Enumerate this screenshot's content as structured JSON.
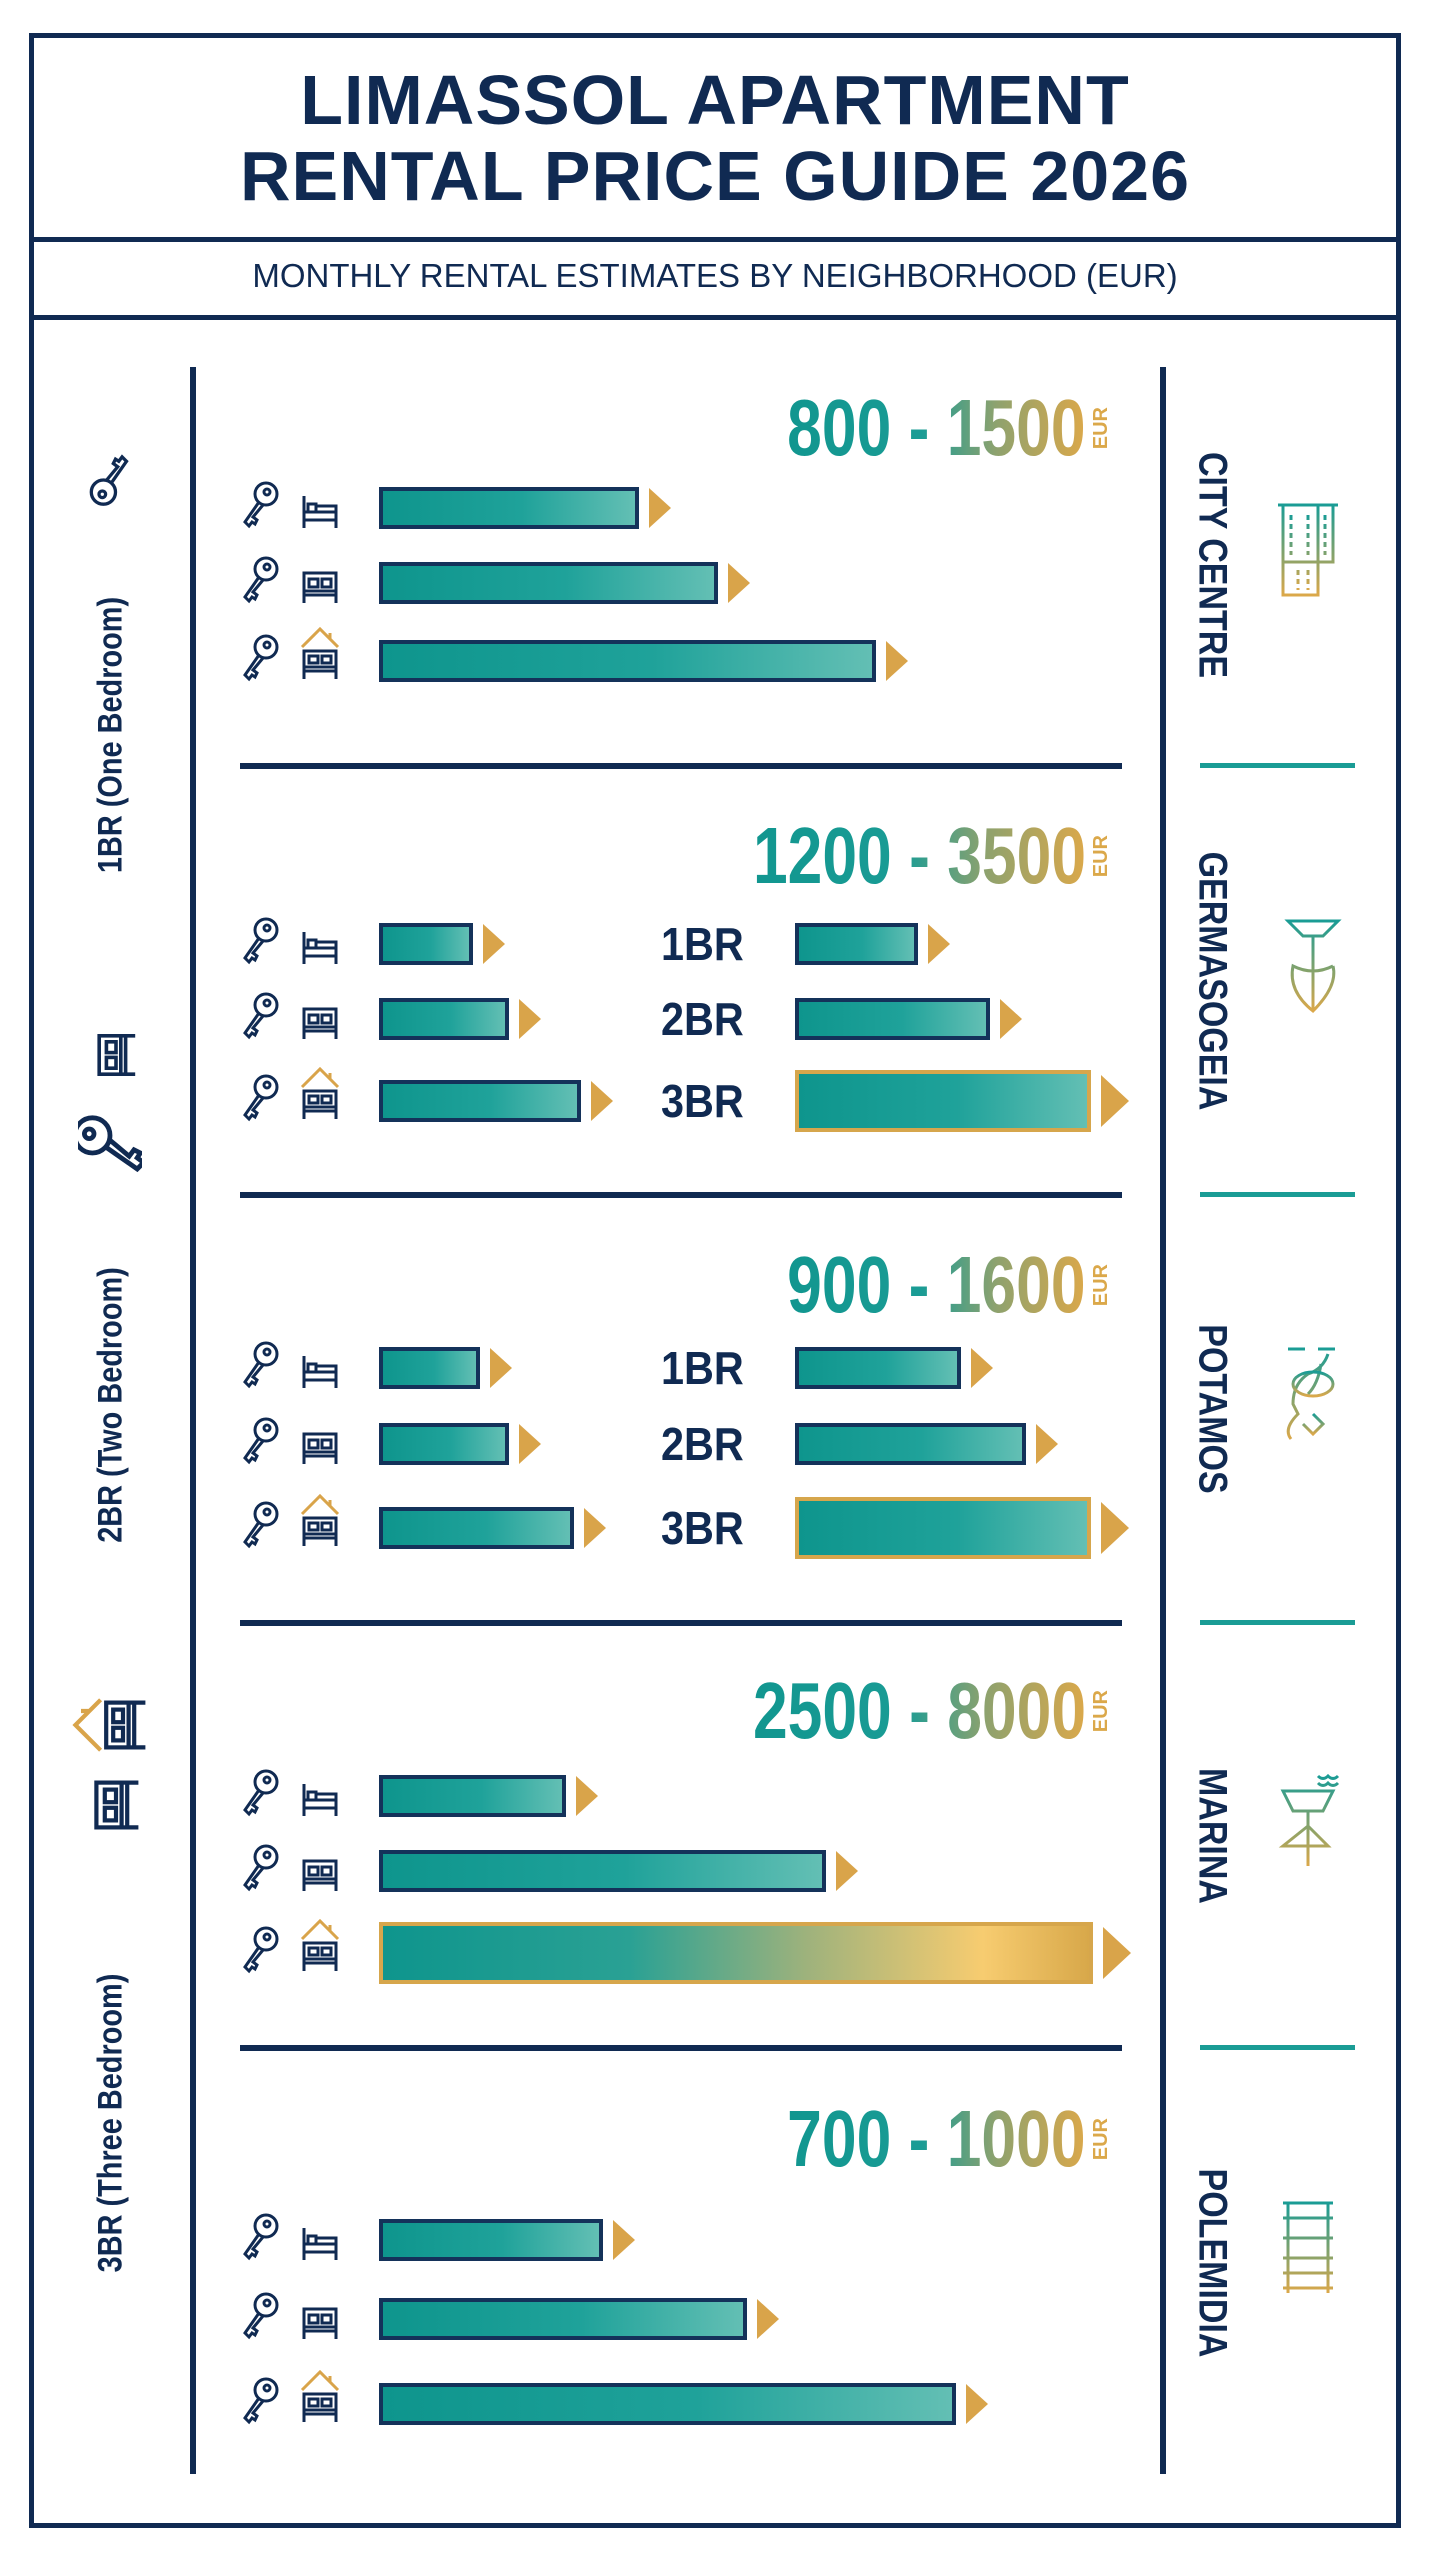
{
  "header": {
    "title_line1": "LIMASSOL APARTMENT",
    "title_line2": "RENTAL PRICE GUIDE 2026",
    "subtitle": "MONTHLY RENTAL ESTIMATES BY NEIGHBORHOOD (EUR)"
  },
  "legend": [
    {
      "label": "1BR (One Bedroom)",
      "icon": "key-icon"
    },
    {
      "label": "2BR (Two Bedroom)",
      "icon": "double-bed-key-icon"
    },
    {
      "label": "3BR (Three Bedroom)",
      "icon": "house-bed-key-icon"
    }
  ],
  "colors": {
    "navy": "#102a52",
    "teal": "#1a9c95",
    "gold": "#d9a44a"
  },
  "chart_data": {
    "type": "bar",
    "title": "LIMASSOL APARTMENT RENTAL PRICE GUIDE 2026",
    "subtitle": "MONTHLY RENTAL ESTIMATES BY NEIGHBORHOOD (EUR)",
    "unit": "EUR",
    "categories": [
      "1BR",
      "2BR",
      "3BR"
    ],
    "neighborhoods": [
      {
        "name": "CITY CENTRE",
        "icon": "building-icon",
        "range": "800 - 1500",
        "unit": "EUR",
        "bars": [
          0.36,
          0.47,
          0.69
        ]
      },
      {
        "name": "GERMASOGEIA",
        "icon": "beach-umbrella-icon",
        "range": "1200 - 3500",
        "unit": "EUR",
        "bars": [
          0.13,
          0.18,
          0.28
        ],
        "labeled_bars": [
          {
            "label": "1BR",
            "value": 0.17
          },
          {
            "label": "2BR",
            "value": 0.27
          },
          {
            "label": "3BR",
            "value": 0.41,
            "highlight": true
          }
        ]
      },
      {
        "name": "POTAMOS",
        "icon": "river-tree-icon",
        "range": "900 - 1600",
        "unit": "EUR",
        "bars": [
          0.14,
          0.18,
          0.27
        ],
        "labeled_bars": [
          {
            "label": "1BR",
            "value": 0.23
          },
          {
            "label": "2BR",
            "value": 0.32
          },
          {
            "label": "3BR",
            "value": 0.41,
            "highlight": true
          }
        ]
      },
      {
        "name": "MARINA",
        "icon": "sailboat-icon",
        "range": "2500 - 8000",
        "unit": "EUR",
        "bars": [
          0.26,
          0.62,
          0.99
        ],
        "top_highlight": true
      },
      {
        "name": "POLEMIDIA",
        "icon": "bench-icon",
        "range": "700 - 1000",
        "unit": "EUR",
        "bars": [
          0.31,
          0.51,
          0.8
        ]
      }
    ]
  }
}
